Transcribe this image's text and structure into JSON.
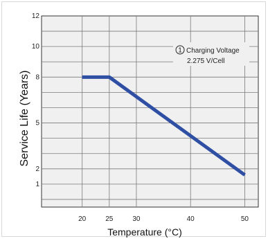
{
  "chart_data": {
    "type": "line",
    "xlabel": "Temperature (°C)",
    "ylabel": "Service Life (Years)",
    "x_ticks": [
      20,
      25,
      30,
      40,
      50
    ],
    "y_ticks": [
      1,
      2,
      5,
      8,
      10,
      12
    ],
    "xlim": [
      12.5,
      52.5
    ],
    "ylim": [
      -0.5,
      12
    ],
    "grid": true,
    "series": [
      {
        "color": "#2e4fa3",
        "x": [
          20,
          25,
          50
        ],
        "y": [
          8,
          8,
          1.6
        ]
      }
    ],
    "annotation": {
      "marker": "1",
      "line1": "Charging Voltage",
      "line2": "2.275 V/Cell"
    },
    "colors": {
      "line": "#2e4fa3",
      "grid": "#7a7a7a",
      "plot_bg": "#f0f0f0",
      "axis": "#333333"
    }
  }
}
